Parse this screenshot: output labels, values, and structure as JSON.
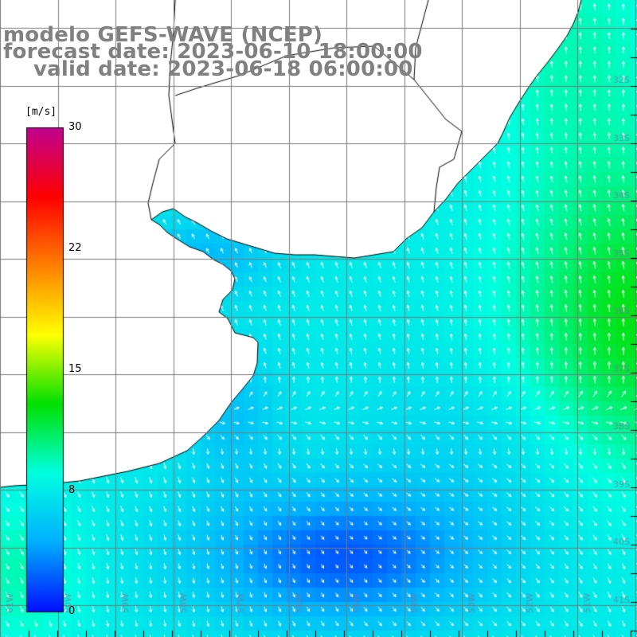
{
  "title": {
    "model": "modelo GEFS-WAVE (NCEP)",
    "forecast": "forecast date: 2023-06-10 18:00:00",
    "valid": "valid date: 2023-06-18 06:00:00"
  },
  "colorbar": {
    "unit": "[m/s]",
    "ticks": [
      "30",
      "22",
      "15",
      "8",
      "0"
    ],
    "tick_values": [
      30,
      22,
      15,
      8,
      0
    ],
    "vmin": 0,
    "vmax": 30,
    "colors": [
      "#0010ff",
      "#00b0ff",
      "#00ffe0",
      "#00e000",
      "#ffff00",
      "#ff8000",
      "#ff0000",
      "#c0008f"
    ]
  },
  "lat_labels": [
    "32S",
    "33S",
    "34S",
    "35S",
    "36S",
    "37S",
    "38S",
    "39S",
    "40S",
    "41S"
  ],
  "lon_labels": [
    "61W",
    "60W",
    "59W",
    "58W",
    "57W",
    "56W",
    "55W",
    "54W",
    "53W",
    "52W",
    "51W"
  ],
  "colors": {
    "land": "#ffffff",
    "coast": "#000000",
    "grid": "#7a7a7a",
    "title": "#808080",
    "arrows": "#ffffff"
  }
}
